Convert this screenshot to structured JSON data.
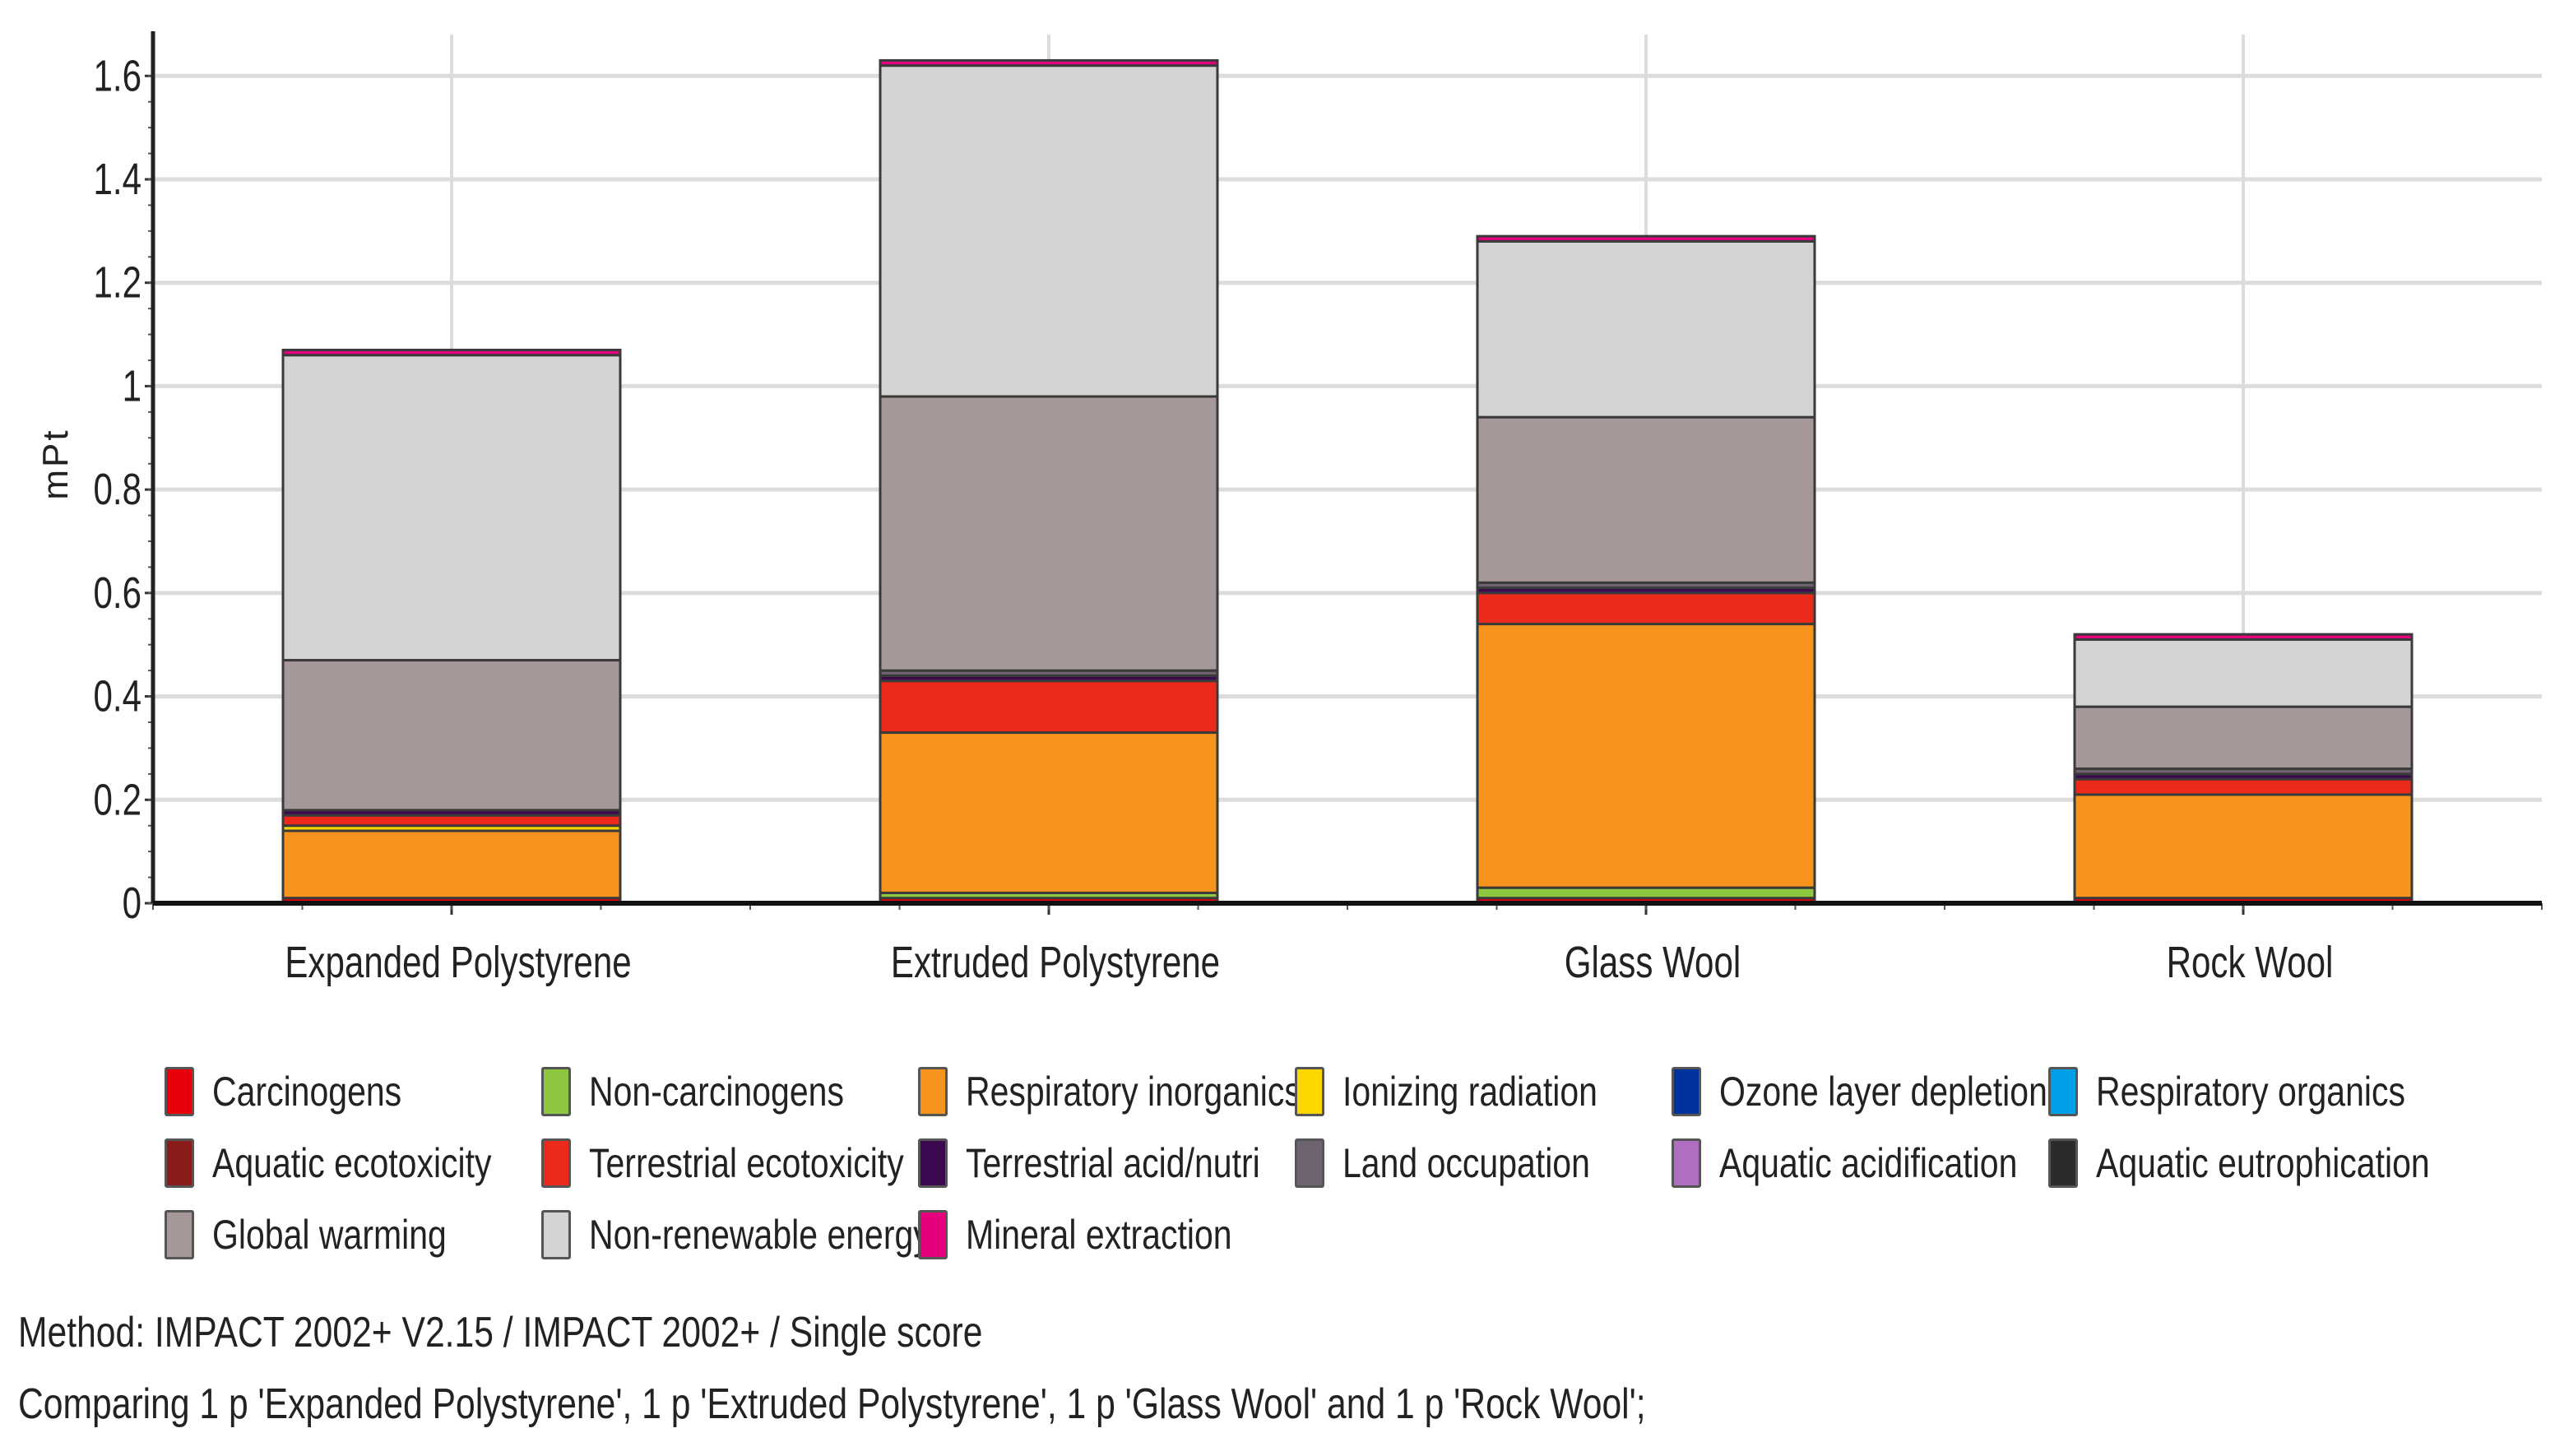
{
  "chart_data": {
    "type": "bar",
    "stacked": true,
    "title": "",
    "xlabel": "",
    "ylabel": "mPt",
    "ylim": [
      0,
      1.68
    ],
    "yticks": [
      0,
      0.2,
      0.4,
      0.6,
      0.8,
      1,
      1.2,
      1.4,
      1.6
    ],
    "ytick_labels": [
      "0",
      "0.2",
      "0.4",
      "0.6",
      "0.8",
      "1",
      "1.2",
      "1.4",
      "1.6"
    ],
    "grid": true,
    "legend_position": "bottom",
    "categories": [
      "Expanded Polystyrene",
      "Extruded Polystyrene",
      "Glass Wool",
      "Rock Wool"
    ],
    "series": [
      {
        "name": "Carcinogens",
        "color": "#e8000b",
        "values": [
          0.01,
          0.01,
          0.01,
          0.01
        ]
      },
      {
        "name": "Non-carcinogens",
        "color": "#8dc63f",
        "values": [
          0.0,
          0.01,
          0.02,
          0.0
        ]
      },
      {
        "name": "Respiratory inorganics",
        "color": "#f7941d",
        "values": [
          0.13,
          0.31,
          0.51,
          0.2
        ]
      },
      {
        "name": "Ionizing radiation",
        "color": "#ffd700",
        "values": [
          0.01,
          0.0,
          0.0,
          0.0
        ]
      },
      {
        "name": "Ozone layer depletion",
        "color": "#00319c",
        "values": [
          0.0,
          0.0,
          0.0,
          0.0
        ]
      },
      {
        "name": "Respiratory organics",
        "color": "#00a0e9",
        "values": [
          0.0,
          0.0,
          0.0,
          0.0
        ]
      },
      {
        "name": "Aquatic ecotoxicity",
        "color": "#8b1a1a",
        "values": [
          0.0,
          0.0,
          0.0,
          0.0
        ]
      },
      {
        "name": "Terrestrial ecotoxicity",
        "color": "#ec2a1c",
        "values": [
          0.02,
          0.1,
          0.06,
          0.03
        ]
      },
      {
        "name": "Terrestrial acid/nutri",
        "color": "#3d0a52",
        "values": [
          0.01,
          0.01,
          0.01,
          0.01
        ]
      },
      {
        "name": "Land occupation",
        "color": "#6e6370",
        "values": [
          0.0,
          0.01,
          0.01,
          0.01
        ]
      },
      {
        "name": "Aquatic acidification",
        "color": "#b06ec0",
        "values": [
          0.0,
          0.0,
          0.0,
          0.0
        ]
      },
      {
        "name": "Aquatic eutrophication",
        "color": "#2b2b2b",
        "values": [
          0.0,
          0.0,
          0.0,
          0.0
        ]
      },
      {
        "name": "Global warming",
        "color": "#a69899",
        "values": [
          0.29,
          0.53,
          0.32,
          0.12
        ]
      },
      {
        "name": "Non-renewable energy",
        "color": "#d3d3d3",
        "values": [
          0.59,
          0.64,
          0.34,
          0.13
        ]
      },
      {
        "name": "Mineral extraction",
        "color": "#e6007e",
        "values": [
          0.01,
          0.01,
          0.01,
          0.01
        ]
      }
    ],
    "legend_order": [
      "Carcinogens",
      "Non-carcinogens",
      "Respiratory inorganics",
      "Ionizing radiation",
      "Ozone layer depletion",
      "Respiratory organics",
      "Aquatic ecotoxicity",
      "Terrestrial ecotoxicity",
      "Terrestrial acid/nutri",
      "Land occupation",
      "Aquatic acidification",
      "Aquatic eutrophication",
      "Global warming",
      "Non-renewable energy",
      "Mineral extraction"
    ]
  },
  "caption": {
    "method": "Method: IMPACT 2002+ V2.15 / IMPACT 2002+ / Single score",
    "comparing": "Comparing 1 p 'Expanded Polystyrene', 1 p 'Extruded Polystyrene', 1 p 'Glass Wool' and 1 p 'Rock Wool';"
  }
}
